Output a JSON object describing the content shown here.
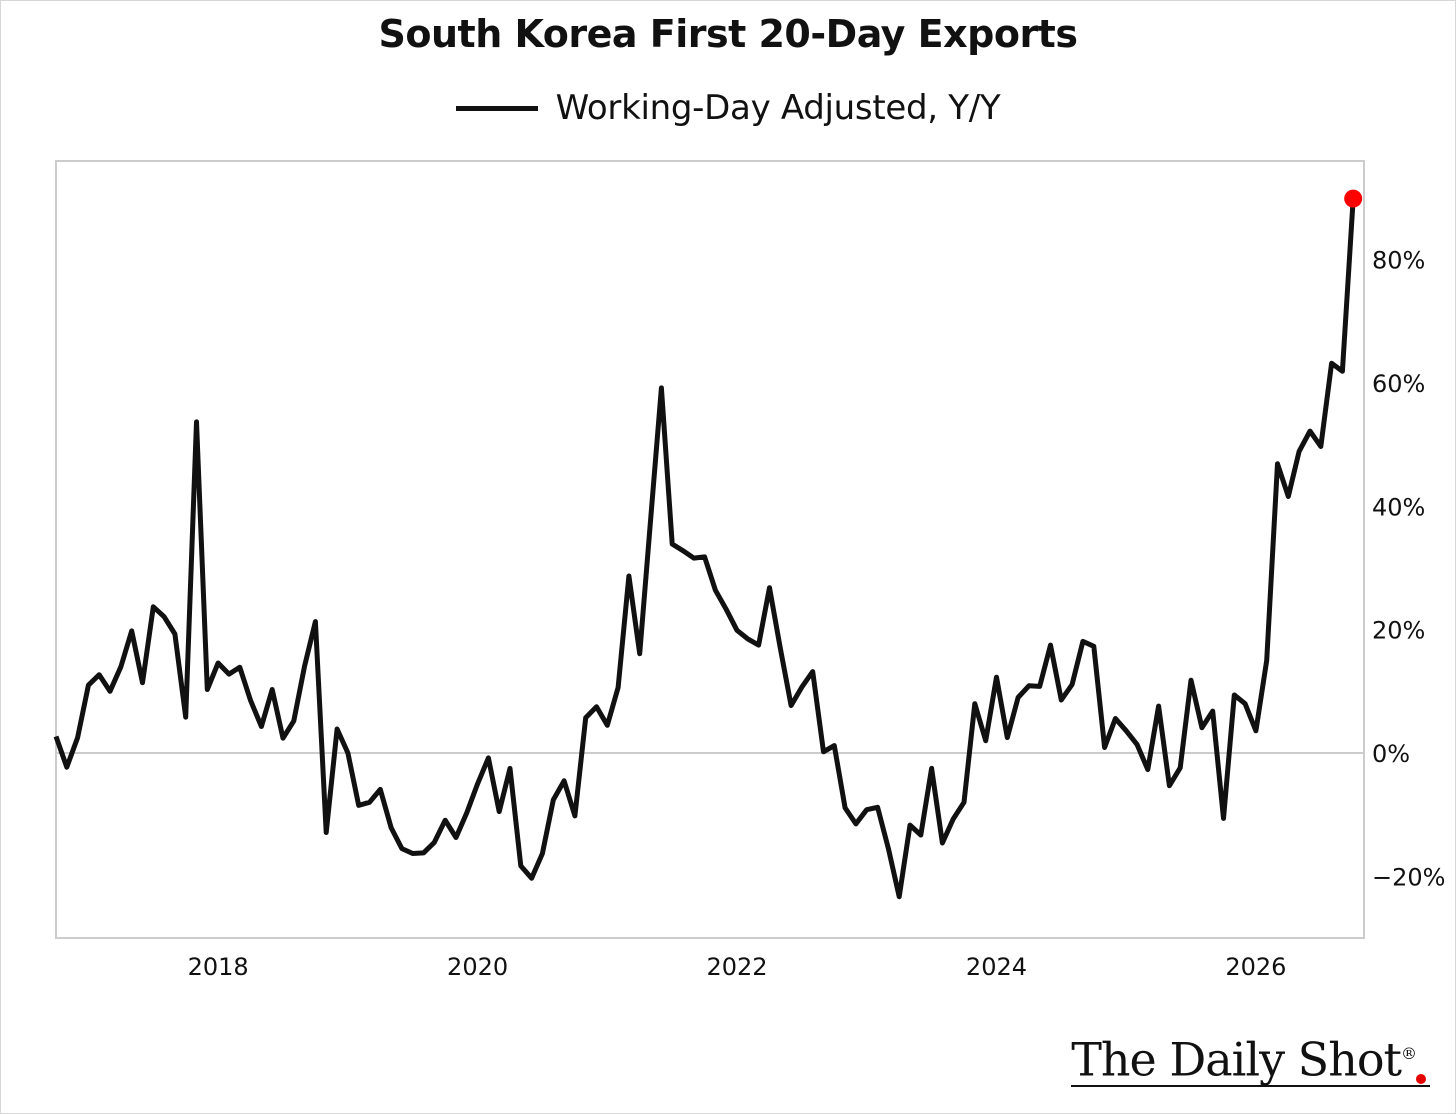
{
  "title": "South Korea First 20-Day Exports",
  "legend": {
    "label": "Working-Day Adjusted, Y/Y"
  },
  "brand": "The Daily Shot",
  "colors": {
    "line": "#111111",
    "marker": "#ff0000",
    "zero_line": "#cccccc",
    "frame": "#cccccc"
  },
  "chart_data": {
    "type": "line",
    "title": "South Korea First 20-Day Exports",
    "xlabel": "",
    "ylabel": "",
    "x_ticks": [
      "2018",
      "2020",
      "2022",
      "2024",
      "2026"
    ],
    "y_ticks": [
      "−20%",
      "0%",
      "20%",
      "40%",
      "60%",
      "80%"
    ],
    "y_tick_values": [
      -20,
      0,
      20,
      40,
      60,
      80
    ],
    "xlim": [
      "2016-10",
      "2026-11"
    ],
    "ylim": [
      -30,
      96
    ],
    "grid": false,
    "legend_position": "top-center",
    "highlight_last_point": true,
    "series": [
      {
        "name": "Working-Day Adjusted, Y/Y",
        "points": [
          [
            "2016-10",
            2.7
          ],
          [
            "2016-11",
            -2.3
          ],
          [
            "2016-12",
            2.5
          ],
          [
            "2017-01",
            11.0
          ],
          [
            "2017-02",
            12.7
          ],
          [
            "2017-03",
            10.0
          ],
          [
            "2017-04",
            14.0
          ],
          [
            "2017-05",
            19.8
          ],
          [
            "2017-06",
            11.4
          ],
          [
            "2017-07",
            23.7
          ],
          [
            "2017-08",
            22.1
          ],
          [
            "2017-09",
            19.3
          ],
          [
            "2017-10",
            5.8
          ],
          [
            "2017-11",
            53.7
          ],
          [
            "2017-12",
            10.3
          ],
          [
            "2018-01",
            14.6
          ],
          [
            "2018-02",
            12.8
          ],
          [
            "2018-03",
            13.9
          ],
          [
            "2018-04",
            8.5
          ],
          [
            "2018-05",
            4.3
          ],
          [
            "2018-06",
            10.3
          ],
          [
            "2018-07",
            2.4
          ],
          [
            "2018-08",
            5.2
          ],
          [
            "2018-09",
            14.1
          ],
          [
            "2018-10",
            21.3
          ],
          [
            "2018-11",
            -12.9
          ],
          [
            "2018-12",
            3.9
          ],
          [
            "2019-01",
            0.0
          ],
          [
            "2019-02",
            -8.5
          ],
          [
            "2019-03",
            -8.0
          ],
          [
            "2019-04",
            -5.9
          ],
          [
            "2019-05",
            -12.1
          ],
          [
            "2019-06",
            -15.5
          ],
          [
            "2019-07",
            -16.3
          ],
          [
            "2019-08",
            -16.2
          ],
          [
            "2019-09",
            -14.5
          ],
          [
            "2019-10",
            -10.9
          ],
          [
            "2019-11",
            -13.7
          ],
          [
            "2019-12",
            -9.7
          ],
          [
            "2020-01",
            -5.0
          ],
          [
            "2020-02",
            -0.8
          ],
          [
            "2020-03",
            -9.5
          ],
          [
            "2020-04",
            -2.5
          ],
          [
            "2020-05",
            -18.3
          ],
          [
            "2020-06",
            -20.3
          ],
          [
            "2020-07",
            -16.3
          ],
          [
            "2020-08",
            -7.6
          ],
          [
            "2020-09",
            -4.5
          ],
          [
            "2020-10",
            -10.2
          ],
          [
            "2020-11",
            5.7
          ],
          [
            "2020-12",
            7.5
          ],
          [
            "2021-01",
            4.5
          ],
          [
            "2021-02",
            10.6
          ],
          [
            "2021-03",
            28.7
          ],
          [
            "2021-04",
            16.1
          ],
          [
            "2021-05",
            37.6
          ],
          [
            "2021-06",
            59.2
          ],
          [
            "2021-07",
            33.9
          ],
          [
            "2021-08",
            32.8
          ],
          [
            "2021-09",
            31.6
          ],
          [
            "2021-10",
            31.8
          ],
          [
            "2021-11",
            26.4
          ],
          [
            "2021-12",
            23.3
          ],
          [
            "2022-01",
            19.9
          ],
          [
            "2022-02",
            18.5
          ],
          [
            "2022-03",
            17.5
          ],
          [
            "2022-04",
            26.8
          ],
          [
            "2022-05",
            17.0
          ],
          [
            "2022-06",
            7.7
          ],
          [
            "2022-07",
            10.7
          ],
          [
            "2022-08",
            13.2
          ],
          [
            "2022-09",
            0.2
          ],
          [
            "2022-10",
            1.2
          ],
          [
            "2022-11",
            -8.9
          ],
          [
            "2022-12",
            -11.5
          ],
          [
            "2023-01",
            -9.2
          ],
          [
            "2023-02",
            -8.8
          ],
          [
            "2023-03",
            -15.5
          ],
          [
            "2023-04",
            -23.3
          ],
          [
            "2023-05",
            -11.7
          ],
          [
            "2023-06",
            -13.3
          ],
          [
            "2023-07",
            -2.5
          ],
          [
            "2023-08",
            -14.6
          ],
          [
            "2023-09",
            -10.7
          ],
          [
            "2023-10",
            -8.0
          ],
          [
            "2023-11",
            8.0
          ],
          [
            "2023-12",
            2.0
          ],
          [
            "2024-01",
            12.3
          ],
          [
            "2024-02",
            2.5
          ],
          [
            "2024-03",
            9.0
          ],
          [
            "2024-04",
            10.9
          ],
          [
            "2024-05",
            10.8
          ],
          [
            "2024-06",
            17.5
          ],
          [
            "2024-07",
            8.6
          ],
          [
            "2024-08",
            11.1
          ],
          [
            "2024-09",
            18.1
          ],
          [
            "2024-10",
            17.3
          ],
          [
            "2024-11",
            0.9
          ],
          [
            "2024-12",
            5.6
          ],
          [
            "2025-01",
            3.6
          ],
          [
            "2025-02",
            1.4
          ],
          [
            "2025-03",
            -2.7
          ],
          [
            "2025-04",
            7.6
          ],
          [
            "2025-05",
            -5.3
          ],
          [
            "2025-06",
            -2.4
          ],
          [
            "2025-07",
            11.8
          ],
          [
            "2025-08",
            4.1
          ],
          [
            "2025-09",
            6.8
          ],
          [
            "2025-10",
            -10.6
          ],
          [
            "2025-11",
            9.4
          ],
          [
            "2025-12",
            8.0
          ],
          [
            "2026-01",
            3.6
          ],
          [
            "2026-02",
            15.0
          ],
          [
            "2026-03",
            46.9
          ],
          [
            "2026-04",
            41.6
          ],
          [
            "2026-05",
            48.9
          ],
          [
            "2026-06",
            52.2
          ],
          [
            "2026-07",
            49.7
          ],
          [
            "2026-08",
            63.2
          ],
          [
            "2026-09",
            61.9
          ],
          [
            "2026-10",
            89.9
          ]
        ]
      }
    ]
  }
}
